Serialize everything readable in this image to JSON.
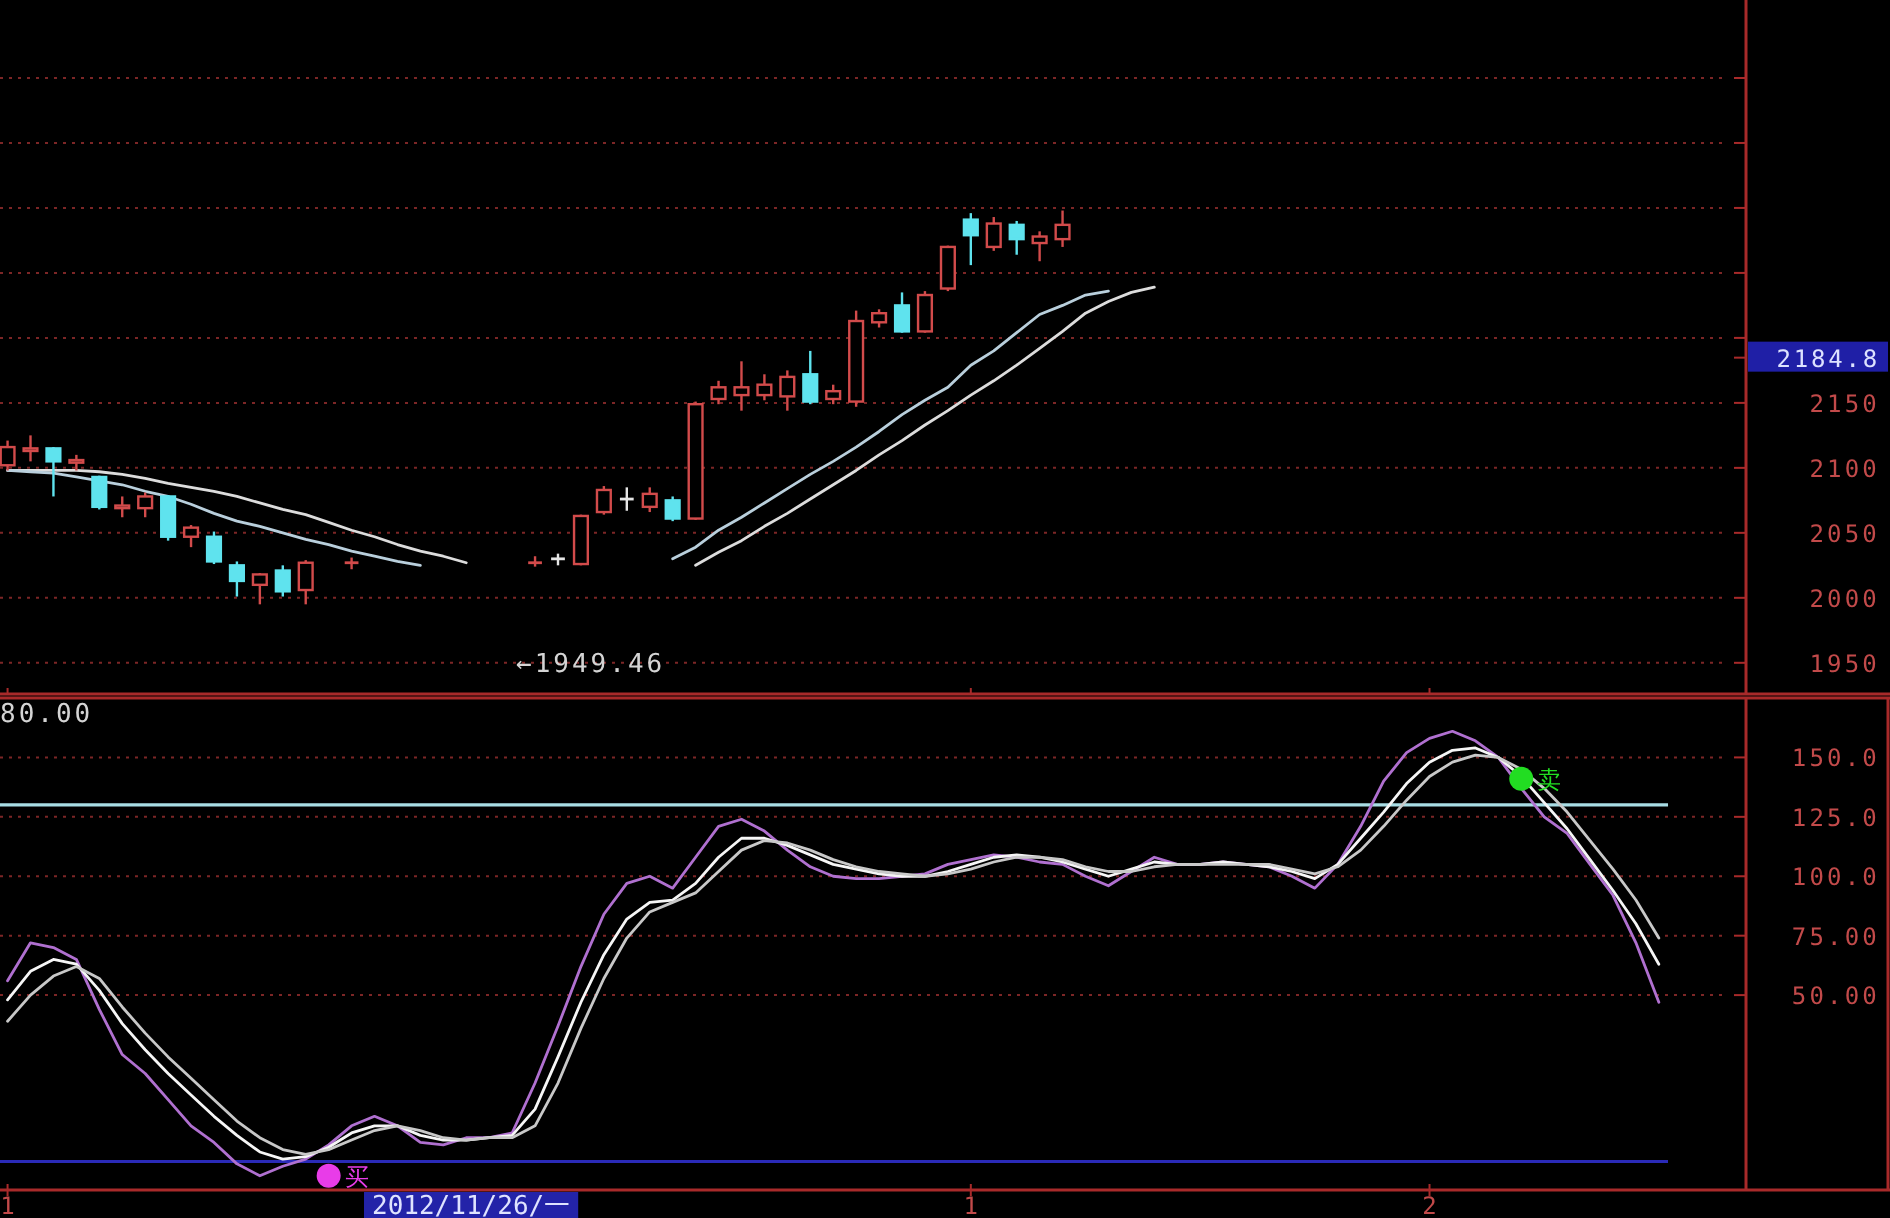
{
  "chart_data": [
    {
      "type": "candlestick",
      "categories": [
        "1",
        null,
        null,
        null,
        null,
        null,
        null,
        null,
        null,
        null,
        null,
        null,
        null,
        null,
        null,
        null,
        null,
        null,
        null,
        null,
        null,
        null,
        null,
        null,
        null,
        null,
        null,
        null,
        null,
        null,
        null,
        null,
        null,
        null,
        null,
        null,
        null,
        null,
        null,
        null,
        null,
        null,
        "1",
        null,
        null,
        null,
        null,
        null,
        null,
        null,
        null,
        null,
        null,
        null,
        null,
        null,
        null,
        null,
        null,
        null,
        null,
        null,
        "2",
        null,
        null,
        null,
        null,
        null,
        null,
        null,
        null,
        null,
        null
      ],
      "ohlc": [
        [
          2102,
          2121,
          2098,
          2116
        ],
        [
          2113,
          2125,
          2105,
          2115
        ],
        [
          2115,
          2116,
          2078,
          2105
        ],
        [
          2104,
          2110,
          2098,
          2106
        ],
        [
          2093,
          2094,
          2068,
          2070
        ],
        [
          2069,
          2078,
          2062,
          2071
        ],
        [
          2069,
          2081,
          2062,
          2078
        ],
        [
          2078,
          2079,
          2044,
          2047
        ],
        [
          2047,
          2056,
          2039,
          2054
        ],
        [
          2047,
          2051,
          2026,
          2028
        ],
        [
          2025,
          2028,
          2001,
          2013
        ],
        [
          2010,
          2019,
          1995,
          2018
        ],
        [
          2021,
          2025,
          2001,
          2005
        ],
        [
          2006,
          2029,
          1995,
          2027
        ],
        null,
        [
          2026,
          2031,
          2022,
          2027
        ],
        null,
        null,
        null,
        null,
        null,
        null,
        null,
        [
          2026,
          2032,
          2024,
          2027
        ],
        [
          2030,
          2034,
          2025,
          2030
        ],
        [
          2026,
          2064,
          2025,
          2063
        ],
        [
          2066,
          2086,
          2064,
          2083
        ],
        [
          2076,
          2085,
          2067,
          2076
        ],
        [
          2070,
          2085,
          2066,
          2080
        ],
        [
          2075,
          2078,
          2059,
          2061
        ],
        [
          2061,
          2151,
          2060,
          2149
        ],
        [
          2153,
          2167,
          2149,
          2162
        ],
        [
          2156,
          2182,
          2144,
          2162
        ],
        [
          2156,
          2172,
          2152,
          2164
        ],
        [
          2155,
          2175,
          2144,
          2170
        ],
        [
          2172,
          2190,
          2149,
          2151
        ],
        [
          2153,
          2164,
          2149,
          2159
        ],
        [
          2151,
          2221,
          2147,
          2213
        ],
        [
          2212,
          2222,
          2208,
          2219
        ],
        [
          2225,
          2235,
          2204,
          2205
        ],
        [
          2205,
          2236,
          2204,
          2233
        ],
        [
          2238,
          2271,
          2236,
          2270
        ],
        [
          2291,
          2296,
          2256,
          2279
        ],
        [
          2270,
          2293,
          2267,
          2288
        ],
        [
          2287,
          2290,
          2264,
          2276
        ],
        [
          2273,
          2282,
          2259,
          2278
        ],
        [
          2276,
          2298,
          2270,
          2287
        ],
        null,
        null,
        null,
        null,
        null,
        null,
        null,
        null,
        null,
        null,
        null,
        null,
        null,
        null,
        null,
        null,
        null,
        null,
        null,
        null,
        null,
        null,
        null,
        null,
        null,
        null
      ],
      "colors": [
        "#d24b4b",
        "#d24b4b",
        "#5fe3ee",
        "#d24b4b",
        "#5fe3ee",
        "#d24b4b",
        "#d24b4b",
        "#5fe3ee",
        "#d24b4b",
        "#5fe3ee",
        "#5fe3ee",
        "#d24b4b",
        "#5fe3ee",
        "#d24b4b",
        null,
        "#d24b4b",
        null,
        null,
        null,
        null,
        null,
        null,
        null,
        "#d24b4b",
        "#e6e6e6",
        "#d24b4b",
        "#d24b4b",
        "#e6e6e6",
        "#d24b4b",
        "#5fe3ee",
        "#d24b4b",
        "#d24b4b",
        "#d24b4b",
        "#d24b4b",
        "#d24b4b",
        "#5fe3ee",
        "#d24b4b",
        "#d24b4b",
        "#d24b4b",
        "#5fe3ee",
        "#d24b4b",
        "#d24b4b",
        "#5fe3ee",
        "#d24b4b",
        "#5fe3ee",
        "#d24b4b",
        "#d24b4b",
        null,
        null,
        null,
        null,
        null,
        null,
        null,
        null,
        null,
        null,
        null,
        null,
        null,
        null,
        null,
        null,
        null,
        null,
        null,
        null,
        null,
        null,
        null,
        null,
        null,
        null
      ],
      "series": [
        {
          "type": "line",
          "color": "#dcdcdc",
          "values": [
            2098,
            2098,
            2098,
            2098,
            2097,
            2095,
            2092,
            2088,
            2085,
            2082,
            2078,
            2073,
            2068,
            2064,
            2058,
            2052,
            2047,
            2041,
            2036,
            2032,
            2027,
            null,
            null,
            null,
            null,
            null,
            null,
            null,
            null,
            null,
            2025,
            2035,
            2044,
            2055,
            2065,
            2076,
            2087,
            2098,
            2110,
            2121,
            2133,
            2144,
            2156,
            2167,
            2179,
            2192,
            2205,
            2219,
            2228,
            2235,
            2239,
            null,
            null,
            null,
            null,
            null,
            null,
            null,
            null,
            null,
            null,
            null,
            null,
            null,
            null,
            null,
            null,
            null,
            null,
            null,
            null,
            null,
            null
          ]
        },
        {
          "type": "line",
          "color": "#b9cfdc",
          "values": [
            2098,
            2097,
            2096,
            2093,
            2090,
            2087,
            2082,
            2078,
            2072,
            2065,
            2059,
            2055,
            2050,
            2045,
            2041,
            2036,
            2032,
            2028,
            2025,
            null,
            null,
            null,
            null,
            null,
            null,
            null,
            null,
            null,
            null,
            2030,
            2039,
            2052,
            2062,
            2073,
            2084,
            2095,
            2105,
            2116,
            2128,
            2141,
            2152,
            2162,
            2179,
            2190,
            2204,
            2218,
            2225,
            2233,
            2236,
            null,
            null,
            null,
            null,
            null,
            null,
            null,
            null,
            null,
            null,
            null,
            null,
            null,
            null,
            null,
            null,
            null,
            null,
            null,
            null,
            null,
            null,
            null,
            null
          ]
        }
      ],
      "ylim": [
        1926,
        2460
      ],
      "yticks": [
        1950,
        2000,
        2050,
        2100,
        2150,
        2184.8,
        {
          "value": 2200,
          "label": null
        },
        {
          "value": 2250,
          "label": null
        },
        {
          "value": 2300,
          "label": null
        },
        {
          "value": 2350,
          "label": null
        },
        {
          "value": 2400,
          "label": null
        }
      ],
      "grid": "y",
      "tick_labels": "y",
      "annotations": [
        "←1949.46"
      ]
    },
    {
      "type": "line",
      "categories": [
        "1",
        null,
        null,
        null,
        null,
        null,
        null,
        null,
        null,
        null,
        null,
        null,
        null,
        null,
        null,
        null,
        null,
        null,
        null,
        null,
        null,
        null,
        null,
        null,
        null,
        null,
        null,
        null,
        null,
        null,
        null,
        null,
        null,
        null,
        null,
        null,
        null,
        null,
        null,
        null,
        null,
        null,
        "1",
        null,
        null,
        null,
        null,
        null,
        null,
        null,
        null,
        null,
        null,
        null,
        null,
        null,
        null,
        null,
        null,
        null,
        null,
        null,
        "2",
        null,
        null,
        null,
        null,
        null,
        null,
        null,
        null,
        null,
        null
      ],
      "series": [
        {
          "color": "#b070d0",
          "values": [
            56,
            72,
            70,
            65,
            44,
            25,
            17,
            6,
            -5,
            -12,
            -21,
            -26,
            -22,
            -19,
            -13,
            -5,
            -1,
            -5,
            -12,
            -13,
            -10,
            -10,
            -8,
            13,
            37,
            62,
            84,
            97,
            100,
            95,
            108,
            121,
            124,
            119,
            111,
            104,
            100,
            99,
            99,
            100,
            101,
            105,
            107,
            109,
            108,
            106,
            105,
            100,
            96,
            102,
            108,
            105,
            105,
            106,
            105,
            104,
            100,
            95,
            105,
            121,
            140,
            152,
            158,
            161,
            157,
            150,
            137,
            125,
            118,
            105,
            92,
            72,
            47
          ]
        },
        {
          "color": "#f6f6f6",
          "values": [
            48,
            60,
            65,
            63,
            52,
            38,
            27,
            17,
            8,
            -1,
            -9,
            -16,
            -19,
            -18,
            -14,
            -8,
            -5,
            -5,
            -9,
            -11,
            -11,
            -10,
            -9,
            2,
            24,
            47,
            67,
            82,
            89,
            90,
            97,
            108,
            116,
            116,
            113,
            109,
            105,
            103,
            101,
            100,
            100,
            102,
            105,
            108,
            109,
            108,
            106,
            103,
            100,
            103,
            106,
            105,
            105,
            106,
            105,
            104,
            102,
            99,
            105,
            116,
            127,
            139,
            148,
            153,
            154,
            150,
            142,
            131,
            120,
            107,
            94,
            80,
            63
          ]
        },
        {
          "color": "#c8c8c8",
          "values": [
            39,
            50,
            58,
            62,
            57,
            45,
            34,
            24,
            15,
            6,
            -3,
            -10,
            -15,
            -17,
            -15,
            -11,
            -7,
            -5,
            -7,
            -10,
            -11,
            -10,
            -10,
            -5,
            13,
            36,
            57,
            74,
            85,
            89,
            93,
            102,
            111,
            115,
            114,
            111,
            107,
            104,
            102,
            101,
            100,
            101,
            103,
            106,
            108,
            108,
            107,
            104,
            102,
            102,
            104,
            105,
            105,
            105,
            105,
            105,
            103,
            101,
            104,
            111,
            121,
            132,
            142,
            148,
            151,
            150,
            145,
            137,
            127,
            115,
            103,
            90,
            74
          ]
        },
        {
          "type": "scatter",
          "name": "买",
          "color": "#e83ce8",
          "marker": "circle",
          "values": [
            null,
            null,
            null,
            null,
            null,
            null,
            null,
            null,
            null,
            null,
            null,
            null,
            null,
            null,
            -26,
            null,
            null,
            null,
            null,
            null,
            null,
            null,
            null,
            null,
            null,
            null,
            null,
            null,
            null,
            null,
            null,
            null,
            null,
            null,
            null,
            null,
            null,
            null,
            null,
            null,
            null,
            null,
            null,
            null,
            null,
            null,
            null,
            null,
            null,
            null,
            null,
            null,
            null,
            null,
            null,
            null,
            null,
            null,
            null,
            null,
            null,
            null,
            null,
            null,
            null,
            null,
            null,
            null,
            null,
            null,
            null,
            null,
            null
          ]
        },
        {
          "type": "scatter",
          "name": "卖",
          "color": "#22dd22",
          "marker": "circle",
          "values": [
            null,
            null,
            null,
            null,
            null,
            null,
            null,
            null,
            null,
            null,
            null,
            null,
            null,
            null,
            null,
            null,
            null,
            null,
            null,
            null,
            null,
            null,
            null,
            null,
            null,
            null,
            null,
            null,
            null,
            null,
            null,
            null,
            null,
            null,
            null,
            null,
            null,
            null,
            null,
            null,
            null,
            null,
            null,
            null,
            null,
            null,
            null,
            null,
            null,
            null,
            null,
            null,
            null,
            null,
            null,
            null,
            null,
            null,
            null,
            null,
            null,
            null,
            null,
            null,
            null,
            null,
            141,
            null,
            null,
            null,
            null,
            null,
            null
          ]
        }
      ],
      "ylim": [
        -32,
        175
      ],
      "yticks": [
        {
          "value": 150,
          "label": "150.0"
        },
        {
          "value": 125,
          "label": "125.0"
        },
        {
          "value": 100,
          "label": "100.0"
        },
        {
          "value": 75,
          "label": "75.00"
        },
        {
          "value": 50,
          "label": "50.00"
        }
      ],
      "grid": "y",
      "ref_lines": [
        {
          "axis": "y",
          "value": 130,
          "color": "#a8dce4"
        },
        {
          "axis": "y",
          "value": -20,
          "color": "#2a2ab8"
        }
      ],
      "annotations": [
        "80.00",
        "2012/11/26/一"
      ]
    }
  ]
}
